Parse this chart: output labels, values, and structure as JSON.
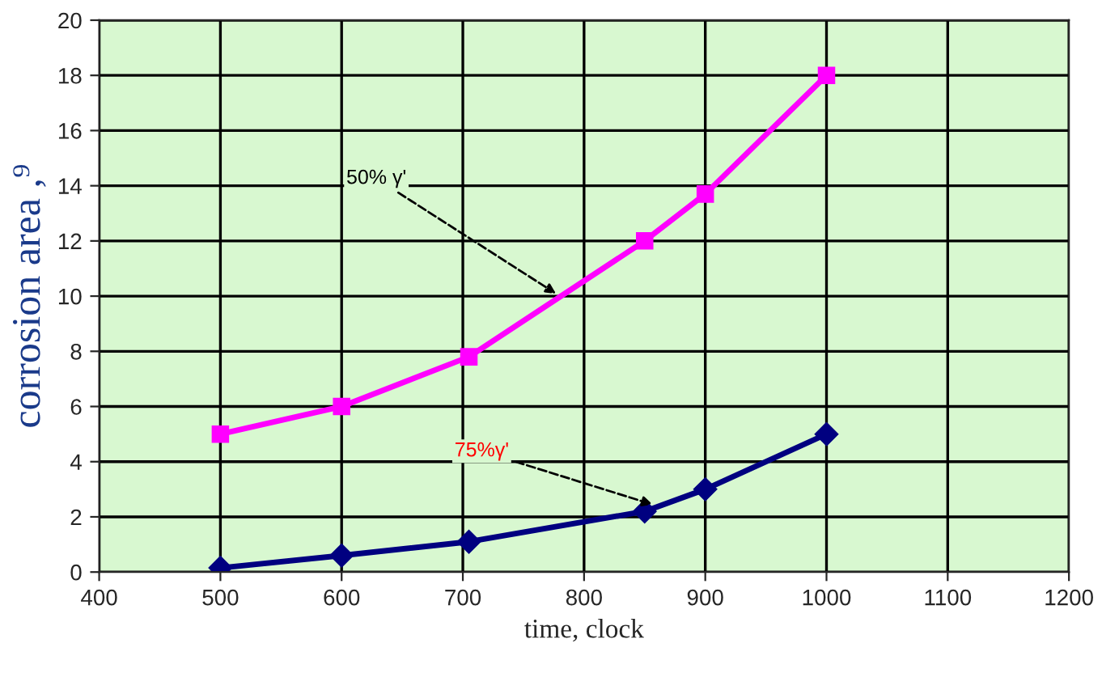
{
  "chart_data": {
    "type": "line",
    "xlabel": "time, clock",
    "ylabel": "corrosion area ,⁹",
    "series": [
      {
        "color": "#ff00ff",
        "marker": "square",
        "x": [
          500,
          600,
          705,
          850,
          900,
          1000
        ],
        "values": [
          5,
          6,
          7.8,
          12,
          13.7,
          18
        ]
      },
      {
        "color": "#000080",
        "marker": "diamond",
        "x": [
          500,
          600,
          705,
          850,
          900,
          1000
        ],
        "values": [
          0.15,
          0.6,
          1.1,
          2.2,
          3.0,
          5.0
        ]
      }
    ],
    "annotations": [
      {
        "text": "50% γ'",
        "x": 780,
        "y": 10
      },
      {
        "text": "75%γ'",
        "x": 860,
        "y": 2.4
      }
    ],
    "xlim": [
      400,
      1200
    ],
    "xticks": [
      400,
      500,
      600,
      700,
      800,
      900,
      1000,
      1100,
      1200
    ],
    "ylim": [
      0,
      20
    ],
    "yticks": [
      0,
      2,
      4,
      6,
      8,
      10,
      12,
      14,
      16,
      18,
      20
    ],
    "grid": true,
    "legend": false
  }
}
